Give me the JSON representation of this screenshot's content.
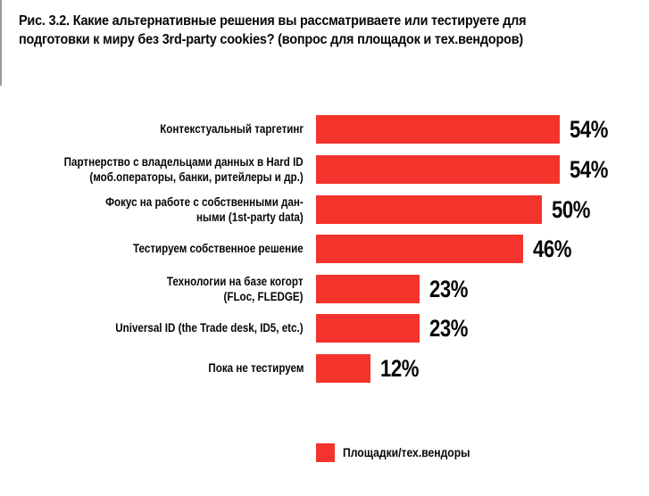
{
  "figure": {
    "title_line1": "Рис. 3.2. Какие альтернативные решения вы рассматриваете или тестируете для",
    "title_line2": "подготовки к миру без 3rd-party cookies? (вопрос для площадок и тех.вендоров)"
  },
  "chart_data": {
    "type": "bar",
    "orientation": "horizontal",
    "title": "Рис. 3.2. Какие альтернативные решения вы рассматриваете или тестируете для подготовки к миру без 3rd-party cookies? (вопрос для площадок и тех.вендоров)",
    "categories": [
      "Контекстуальный таргетинг",
      "Партнерство с владельцами данных в Hard ID\n(моб.операторы, банки, ритейлеры и др.)",
      "Фокус на работе с собственными дан-\nными (1st-party data)",
      "Тестируем собственное решение",
      "Технологии на базе когорт\n(FLoc, FLEDGE)",
      "Universal ID (the Trade desk, ID5, etc.)",
      "Пока не тестируем"
    ],
    "series": [
      {
        "name": "Площадки/тех.вендоры",
        "values": [
          54,
          54,
          50,
          46,
          23,
          23,
          12
        ]
      }
    ],
    "value_labels": [
      "54%",
      "54%",
      "50%",
      "46%",
      "23%",
      "23%",
      "12%"
    ],
    "value_suffix": "%",
    "xlim": [
      0,
      54
    ],
    "grid": false,
    "axes_shown": false,
    "bar_color": "#F4342C",
    "text_color": "#060606",
    "background_color": "#ffffff",
    "legend_position": "bottom-center"
  },
  "legend": {
    "label": "Площадки/тех.вендоры",
    "swatch_color": "#F4342C"
  }
}
